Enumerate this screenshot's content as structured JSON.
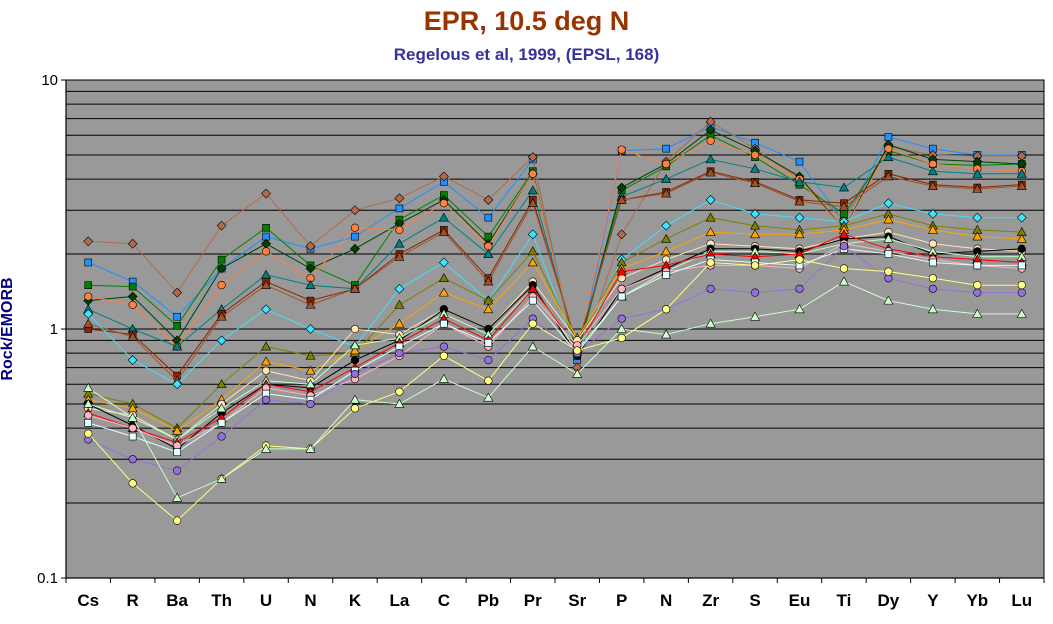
{
  "chart_data": {
    "type": "line",
    "title": "EPR, 10.5 deg N",
    "subtitle": "Regelous et al, 1999, (EPSL, 168)",
    "ylabel": "Rock/EMORB",
    "xlabel": "",
    "yscale": "log",
    "ylim": [
      0.1,
      10
    ],
    "ytick_labels": [
      "0.1",
      "1",
      "10"
    ],
    "grid": "horizontal",
    "legend": "none",
    "colors": {
      "plot_background": "#999999",
      "title": "#993300",
      "subtitle": "#333399",
      "ylabel": "#000080",
      "gridline": "#000000"
    },
    "categories": [
      "Cs",
      "R",
      "Ba",
      "Th",
      "U",
      "N",
      "K",
      "La",
      "C",
      "Pb",
      "Pr",
      "Sr",
      "P",
      "N",
      "Zr",
      "S",
      "Eu",
      "Ti",
      "Dy",
      "Y",
      "Yb",
      "Lu"
    ],
    "series": [
      {
        "color": "#1e90ff",
        "marker": "square",
        "values": [
          1.85,
          1.55,
          1.12,
          1.75,
          2.35,
          2.1,
          2.35,
          3.05,
          3.9,
          2.8,
          4.8,
          0.75,
          5.2,
          5.3,
          6.5,
          5.6,
          4.7,
          2.7,
          5.9,
          5.3,
          5.0,
          5.0
        ]
      },
      {
        "color": "#b36a4a",
        "marker": "diamond",
        "values": [
          2.25,
          2.2,
          1.4,
          2.6,
          3.5,
          2.15,
          3.0,
          3.35,
          4.1,
          3.3,
          4.9,
          0.7,
          2.4,
          4.7,
          6.8,
          5.3,
          4.0,
          2.75,
          5.4,
          5.0,
          4.95,
          4.95
        ]
      },
      {
        "color": "#008000",
        "marker": "square",
        "values": [
          1.5,
          1.48,
          1.03,
          1.9,
          2.55,
          1.8,
          1.5,
          2.75,
          3.45,
          2.35,
          4.3,
          0.78,
          3.6,
          4.5,
          6.0,
          4.9,
          3.8,
          2.9,
          5.2,
          4.6,
          4.55,
          4.6
        ]
      },
      {
        "color": "#004000",
        "marker": "diamond",
        "values": [
          1.3,
          1.35,
          0.9,
          1.75,
          2.2,
          1.75,
          2.1,
          2.65,
          3.3,
          2.2,
          4.2,
          0.8,
          3.7,
          4.6,
          6.3,
          5.2,
          4.1,
          2.5,
          5.5,
          4.8,
          4.7,
          4.6
        ]
      },
      {
        "color": "#ff8040",
        "marker": "circle",
        "values": [
          1.35,
          1.25,
          0.85,
          1.5,
          2.05,
          1.6,
          2.55,
          2.5,
          3.2,
          2.15,
          4.2,
          0.8,
          5.25,
          4.6,
          5.7,
          5.0,
          4.0,
          2.5,
          5.3,
          4.6,
          4.4,
          4.3
        ]
      },
      {
        "color": "#008080",
        "marker": "triangle",
        "values": [
          1.2,
          1.0,
          0.85,
          1.2,
          1.65,
          1.5,
          1.45,
          2.2,
          2.8,
          2.0,
          3.6,
          0.82,
          3.4,
          4.0,
          4.8,
          4.4,
          3.9,
          3.7,
          4.9,
          4.3,
          4.2,
          4.2
        ]
      },
      {
        "color": "#8b2500",
        "marker": "square",
        "values": [
          1.0,
          0.95,
          0.65,
          1.15,
          1.55,
          1.3,
          1.45,
          2.0,
          2.5,
          1.6,
          3.3,
          0.85,
          3.3,
          3.55,
          4.3,
          3.9,
          3.3,
          3.2,
          4.2,
          3.8,
          3.7,
          3.8
        ]
      },
      {
        "color": "#a0522d",
        "marker": "triangle",
        "values": [
          1.05,
          0.93,
          0.62,
          1.12,
          1.5,
          1.25,
          1.45,
          1.95,
          2.45,
          1.55,
          3.2,
          0.86,
          3.3,
          3.5,
          4.25,
          3.85,
          3.25,
          3.1,
          4.1,
          3.75,
          3.65,
          3.75
        ]
      },
      {
        "color": "#40e0ff",
        "marker": "diamond",
        "values": [
          1.15,
          0.75,
          0.6,
          0.9,
          1.2,
          1.0,
          0.85,
          1.45,
          1.85,
          1.3,
          2.4,
          0.8,
          1.9,
          2.6,
          3.3,
          2.9,
          2.8,
          2.7,
          3.2,
          2.9,
          2.8,
          2.8
        ]
      },
      {
        "color": "#808000",
        "marker": "triangle",
        "values": [
          0.55,
          0.5,
          0.4,
          0.6,
          0.85,
          0.78,
          0.8,
          1.25,
          1.6,
          1.3,
          2.05,
          0.88,
          1.85,
          2.3,
          2.8,
          2.6,
          2.5,
          2.6,
          2.9,
          2.6,
          2.5,
          2.45
        ]
      },
      {
        "color": "#ffa500",
        "marker": "triangle",
        "values": [
          0.52,
          0.48,
          0.39,
          0.52,
          0.74,
          0.68,
          0.82,
          1.05,
          1.4,
          1.2,
          1.85,
          0.92,
          1.75,
          2.05,
          2.45,
          2.4,
          2.4,
          2.5,
          2.75,
          2.5,
          2.35,
          2.3
        ]
      },
      {
        "color": "#ffe4b5",
        "marker": "circle",
        "values": [
          0.48,
          0.45,
          0.36,
          0.5,
          0.68,
          0.62,
          1.0,
          0.95,
          1.2,
          1.0,
          1.55,
          0.9,
          1.6,
          1.9,
          2.2,
          2.15,
          2.1,
          2.3,
          2.45,
          2.2,
          2.1,
          2.05
        ]
      },
      {
        "color": "#000000",
        "marker": "circle",
        "values": [
          0.5,
          0.41,
          0.33,
          0.46,
          0.6,
          0.58,
          0.75,
          0.9,
          1.2,
          1.0,
          1.5,
          0.78,
          1.45,
          1.75,
          2.1,
          2.1,
          2.05,
          2.3,
          2.35,
          2.0,
          2.05,
          2.1
        ]
      },
      {
        "color": "#c0ffc0",
        "marker": "triangle",
        "values": [
          0.58,
          0.44,
          0.36,
          0.48,
          0.62,
          0.6,
          0.86,
          0.92,
          1.15,
          0.95,
          1.45,
          0.82,
          1.35,
          1.7,
          2.05,
          2.05,
          2.0,
          2.2,
          2.3,
          2.05,
          1.95,
          1.95
        ]
      },
      {
        "color": "#ff0000",
        "marker": "triangle",
        "values": [
          0.46,
          0.4,
          0.35,
          0.44,
          0.6,
          0.56,
          0.7,
          0.88,
          1.1,
          0.9,
          1.45,
          0.84,
          1.7,
          1.8,
          2.0,
          1.95,
          2.0,
          2.4,
          2.1,
          1.95,
          1.9,
          1.85
        ]
      },
      {
        "color": "#ffb6c1",
        "marker": "circle",
        "values": [
          0.45,
          0.4,
          0.34,
          0.42,
          0.58,
          0.54,
          0.63,
          0.78,
          1.05,
          0.85,
          1.35,
          0.86,
          1.45,
          1.7,
          1.8,
          1.8,
          1.75,
          2.2,
          2.05,
          1.9,
          1.8,
          1.75
        ]
      },
      {
        "color": "#e0ffff",
        "marker": "square",
        "values": [
          0.42,
          0.37,
          0.32,
          0.42,
          0.55,
          0.52,
          0.68,
          0.85,
          1.05,
          0.88,
          1.3,
          0.8,
          1.35,
          1.65,
          1.9,
          1.85,
          1.8,
          2.1,
          2.0,
          1.85,
          1.8,
          1.8
        ]
      },
      {
        "color": "#9370db",
        "marker": "circle",
        "values": [
          0.36,
          0.3,
          0.27,
          0.37,
          0.52,
          0.5,
          0.66,
          0.8,
          0.85,
          0.75,
          1.1,
          0.8,
          1.1,
          1.2,
          1.45,
          1.4,
          1.45,
          2.15,
          1.6,
          1.45,
          1.4,
          1.4
        ]
      },
      {
        "color": "#ffff80",
        "marker": "circle",
        "values": [
          0.38,
          0.24,
          0.17,
          0.25,
          0.34,
          0.33,
          0.48,
          0.56,
          0.78,
          0.62,
          1.05,
          0.82,
          0.92,
          1.2,
          1.85,
          1.8,
          1.9,
          1.75,
          1.7,
          1.6,
          1.5,
          1.5
        ]
      },
      {
        "color": "#ccffcc",
        "marker": "triangle",
        "values": [
          0.5,
          0.44,
          0.21,
          0.25,
          0.33,
          0.33,
          0.52,
          0.5,
          0.63,
          0.53,
          0.85,
          0.66,
          1.0,
          0.95,
          1.05,
          1.12,
          1.2,
          1.55,
          1.3,
          1.2,
          1.15,
          1.15
        ]
      }
    ]
  }
}
